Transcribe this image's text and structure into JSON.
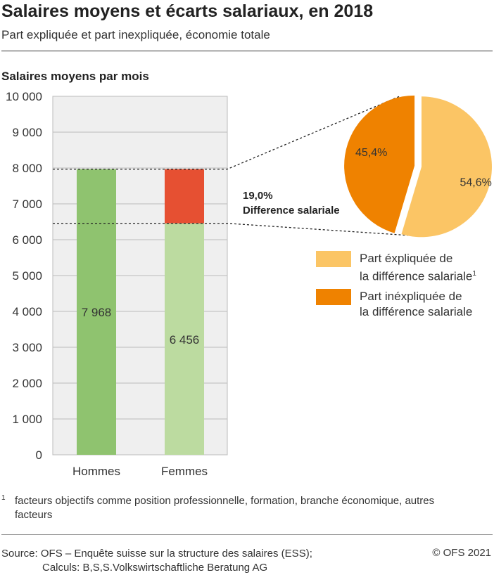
{
  "title": "Salaires moyens et écarts salariaux, en 2018",
  "subtitle": "Part expliquée et part inexpliquée, économie totale",
  "chart_data": [
    {
      "type": "bar",
      "stacked": true,
      "ylabel": "Salaires moyens par mois",
      "ylim": [
        0,
        10000
      ],
      "yticks": [
        "0",
        "1 000",
        "2 000",
        "3 000",
        "4 000",
        "5 000",
        "6 000",
        "7 000",
        "8 000",
        "9 000",
        "10 000"
      ],
      "grid": true,
      "categories": [
        "Hommes",
        "Femmes"
      ],
      "values": [
        7968,
        6456
      ],
      "data_labels": [
        "7 968",
        "6 456"
      ],
      "gap_value": 1512,
      "colors": {
        "hommes": "#8fc36f",
        "femmes": "#bcdba0",
        "gap": "#e65032",
        "plot_bg": "#efefef"
      },
      "annotation": {
        "value": "19,0%",
        "label": "Difference salariale"
      }
    },
    {
      "type": "pie",
      "slices": [
        {
          "label": "Part éxpliquée de la différence salariale",
          "value": 54.6,
          "data_label": "54,6%",
          "color": "#fbc565"
        },
        {
          "label": "Part inéxpliquée de la différence salariale",
          "value": 45.4,
          "data_label": "45,4%",
          "color": "#ef8200"
        }
      ],
      "legend": [
        {
          "line1": "Part éxpliquée de",
          "line2": "la différence salariale",
          "sup": "1",
          "color": "#fbc565"
        },
        {
          "line1": "Part inéxpliquée de",
          "line2": "la différence salariale",
          "color": "#ef8200"
        }
      ],
      "legend_position": "bottom-right"
    }
  ],
  "footnote": {
    "mark": "1",
    "text": "facteurs objectifs comme position professionnelle, formation, branche économique, autres facteurs"
  },
  "source": {
    "line1": "Source: OFS – Enquête suisse sur la structure des salaires (ESS);",
    "line2": "Calculs: B,S,S.Volkswirtschaftliche Beratung AG"
  },
  "copyright": "© OFS 2021"
}
